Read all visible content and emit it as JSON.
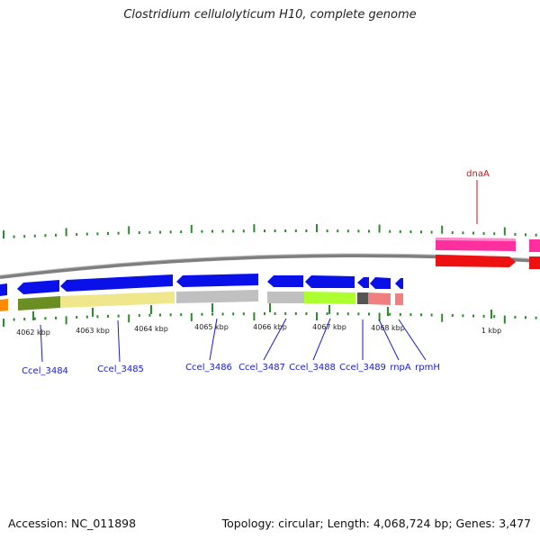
{
  "title": "Clostridium cellulolyticum H10, complete genome",
  "accession": "Accession: NC_011898",
  "summary": "Topology: circular; Length: 4,068,724 bp; Genes: 3,477",
  "colors": {
    "backbone": "#808080",
    "tick": "#2d8a2d",
    "forward_gene": "#0a10e8",
    "gene_label": "#1a1acc",
    "highlight_label": "#cc1111",
    "dnaA_top": "#ff2fa0",
    "dnaA_bottom": "#ee1111"
  },
  "kbp_labels": [
    "4062 kbp",
    "4063 kbp",
    "4064 kbp",
    "4065 kbp",
    "4066 kbp",
    "4067 kbp",
    "4068 kbp",
    "1 kbp"
  ],
  "gene_labels": [
    "Ccel_3484",
    "Ccel_3485",
    "Ccel_3486",
    "Ccel_3487",
    "Ccel_3488",
    "Ccel_3489",
    "rnpA",
    "rpmH"
  ],
  "highlight_label": "dnaA"
}
